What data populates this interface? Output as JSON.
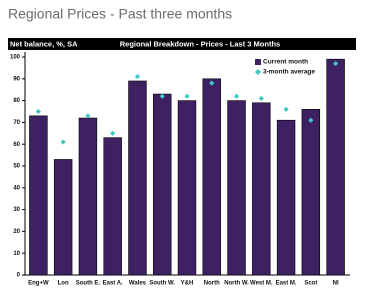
{
  "title": "Regional Prices - Past three months",
  "chart_data": {
    "type": "bar",
    "title": "Regional Breakdown - Prices - Last 3 Months",
    "y_label": "Net balance, %, SA",
    "categories": [
      "Eng+W",
      "Lon",
      "South E.",
      "East A.",
      "Wales",
      "South W.",
      "Y&H",
      "North",
      "North W.",
      "West M.",
      "East M.",
      "Scot",
      "NI"
    ],
    "series": [
      {
        "name": "Current month",
        "color": "#3d2163",
        "mark": "bar",
        "values": [
          73,
          53,
          72,
          63,
          89,
          83,
          80,
          90,
          80,
          79,
          71,
          76,
          99
        ]
      },
      {
        "name": "3-month average",
        "color": "#3ec8c2",
        "mark": "diamond",
        "values": [
          75,
          61,
          73,
          65,
          91,
          82,
          82,
          88,
          82,
          81,
          76,
          71,
          97
        ]
      }
    ],
    "ylim": [
      0,
      100
    ],
    "yticks": [
      0,
      10,
      20,
      30,
      40,
      50,
      60,
      70,
      80,
      90,
      100
    ],
    "grid": false,
    "legend": "top-right"
  }
}
